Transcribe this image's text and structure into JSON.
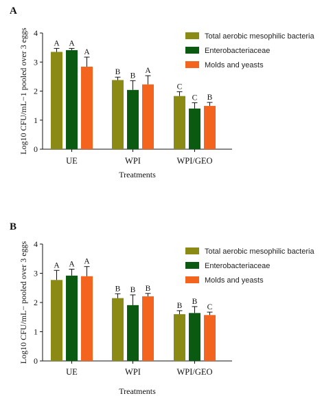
{
  "colors": {
    "total_aerobic": "#8b8a14",
    "enterobacteriaceae": "#0b5a12",
    "molds_yeasts": "#f3651f"
  },
  "chart_data": [
    {
      "panel": "A",
      "type": "bar",
      "categories": [
        "UE",
        "WPI",
        "WPI/GEO"
      ],
      "xlabel": "Treatments",
      "ylabel": "Log10 CFU/mL−1 pooled over 3 eggs",
      "ylim": [
        0,
        4
      ],
      "yticks": [
        "0",
        "1",
        "2",
        "3",
        "4"
      ],
      "legend_position": "top-right",
      "series": [
        {
          "name": "Total aerobic mesophilic bacteria",
          "color_key": "total_aerobic",
          "values": [
            3.35,
            2.38,
            1.83
          ],
          "errors": [
            0.12,
            0.1,
            0.15
          ],
          "letters": [
            "A",
            "B",
            "C"
          ]
        },
        {
          "name": "Enterobacteriaceae",
          "color_key": "enterobacteriaceae",
          "values": [
            3.41,
            2.04,
            1.4
          ],
          "errors": [
            0.06,
            0.32,
            0.2
          ],
          "letters": [
            "A",
            "B",
            "C"
          ]
        },
        {
          "name": "Molds and yeasts",
          "color_key": "molds_yeasts",
          "values": [
            2.84,
            2.23,
            1.49
          ],
          "errors": [
            0.33,
            0.3,
            0.12
          ],
          "letters": [
            "A",
            "A",
            "B"
          ]
        }
      ]
    },
    {
      "panel": "B",
      "type": "bar",
      "categories": [
        "UE",
        "WPI",
        "WPI/GEO"
      ],
      "xlabel": "Treatments",
      "ylabel": "Log10 CFU/mL− pooled over 3 eggs",
      "ylim": [
        0,
        4
      ],
      "yticks": [
        "0",
        "1",
        "2",
        "3",
        "4"
      ],
      "legend_position": "top-right",
      "series": [
        {
          "name": "Total aerobic mesophilic bacteria",
          "color_key": "total_aerobic",
          "values": [
            2.77,
            2.15,
            1.6
          ],
          "errors": [
            0.33,
            0.15,
            0.12
          ],
          "letters": [
            "A",
            "B",
            "B"
          ]
        },
        {
          "name": "Enterobacteriaceae",
          "color_key": "enterobacteriaceae",
          "values": [
            2.92,
            1.91,
            1.64
          ],
          "errors": [
            0.22,
            0.35,
            0.22
          ],
          "letters": [
            "A",
            "B",
            "B"
          ]
        },
        {
          "name": "Molds and yeasts",
          "color_key": "molds_yeasts",
          "values": [
            2.9,
            2.21,
            1.57
          ],
          "errors": [
            0.33,
            0.1,
            0.1
          ],
          "letters": [
            "A",
            "B",
            "C"
          ]
        }
      ]
    }
  ]
}
